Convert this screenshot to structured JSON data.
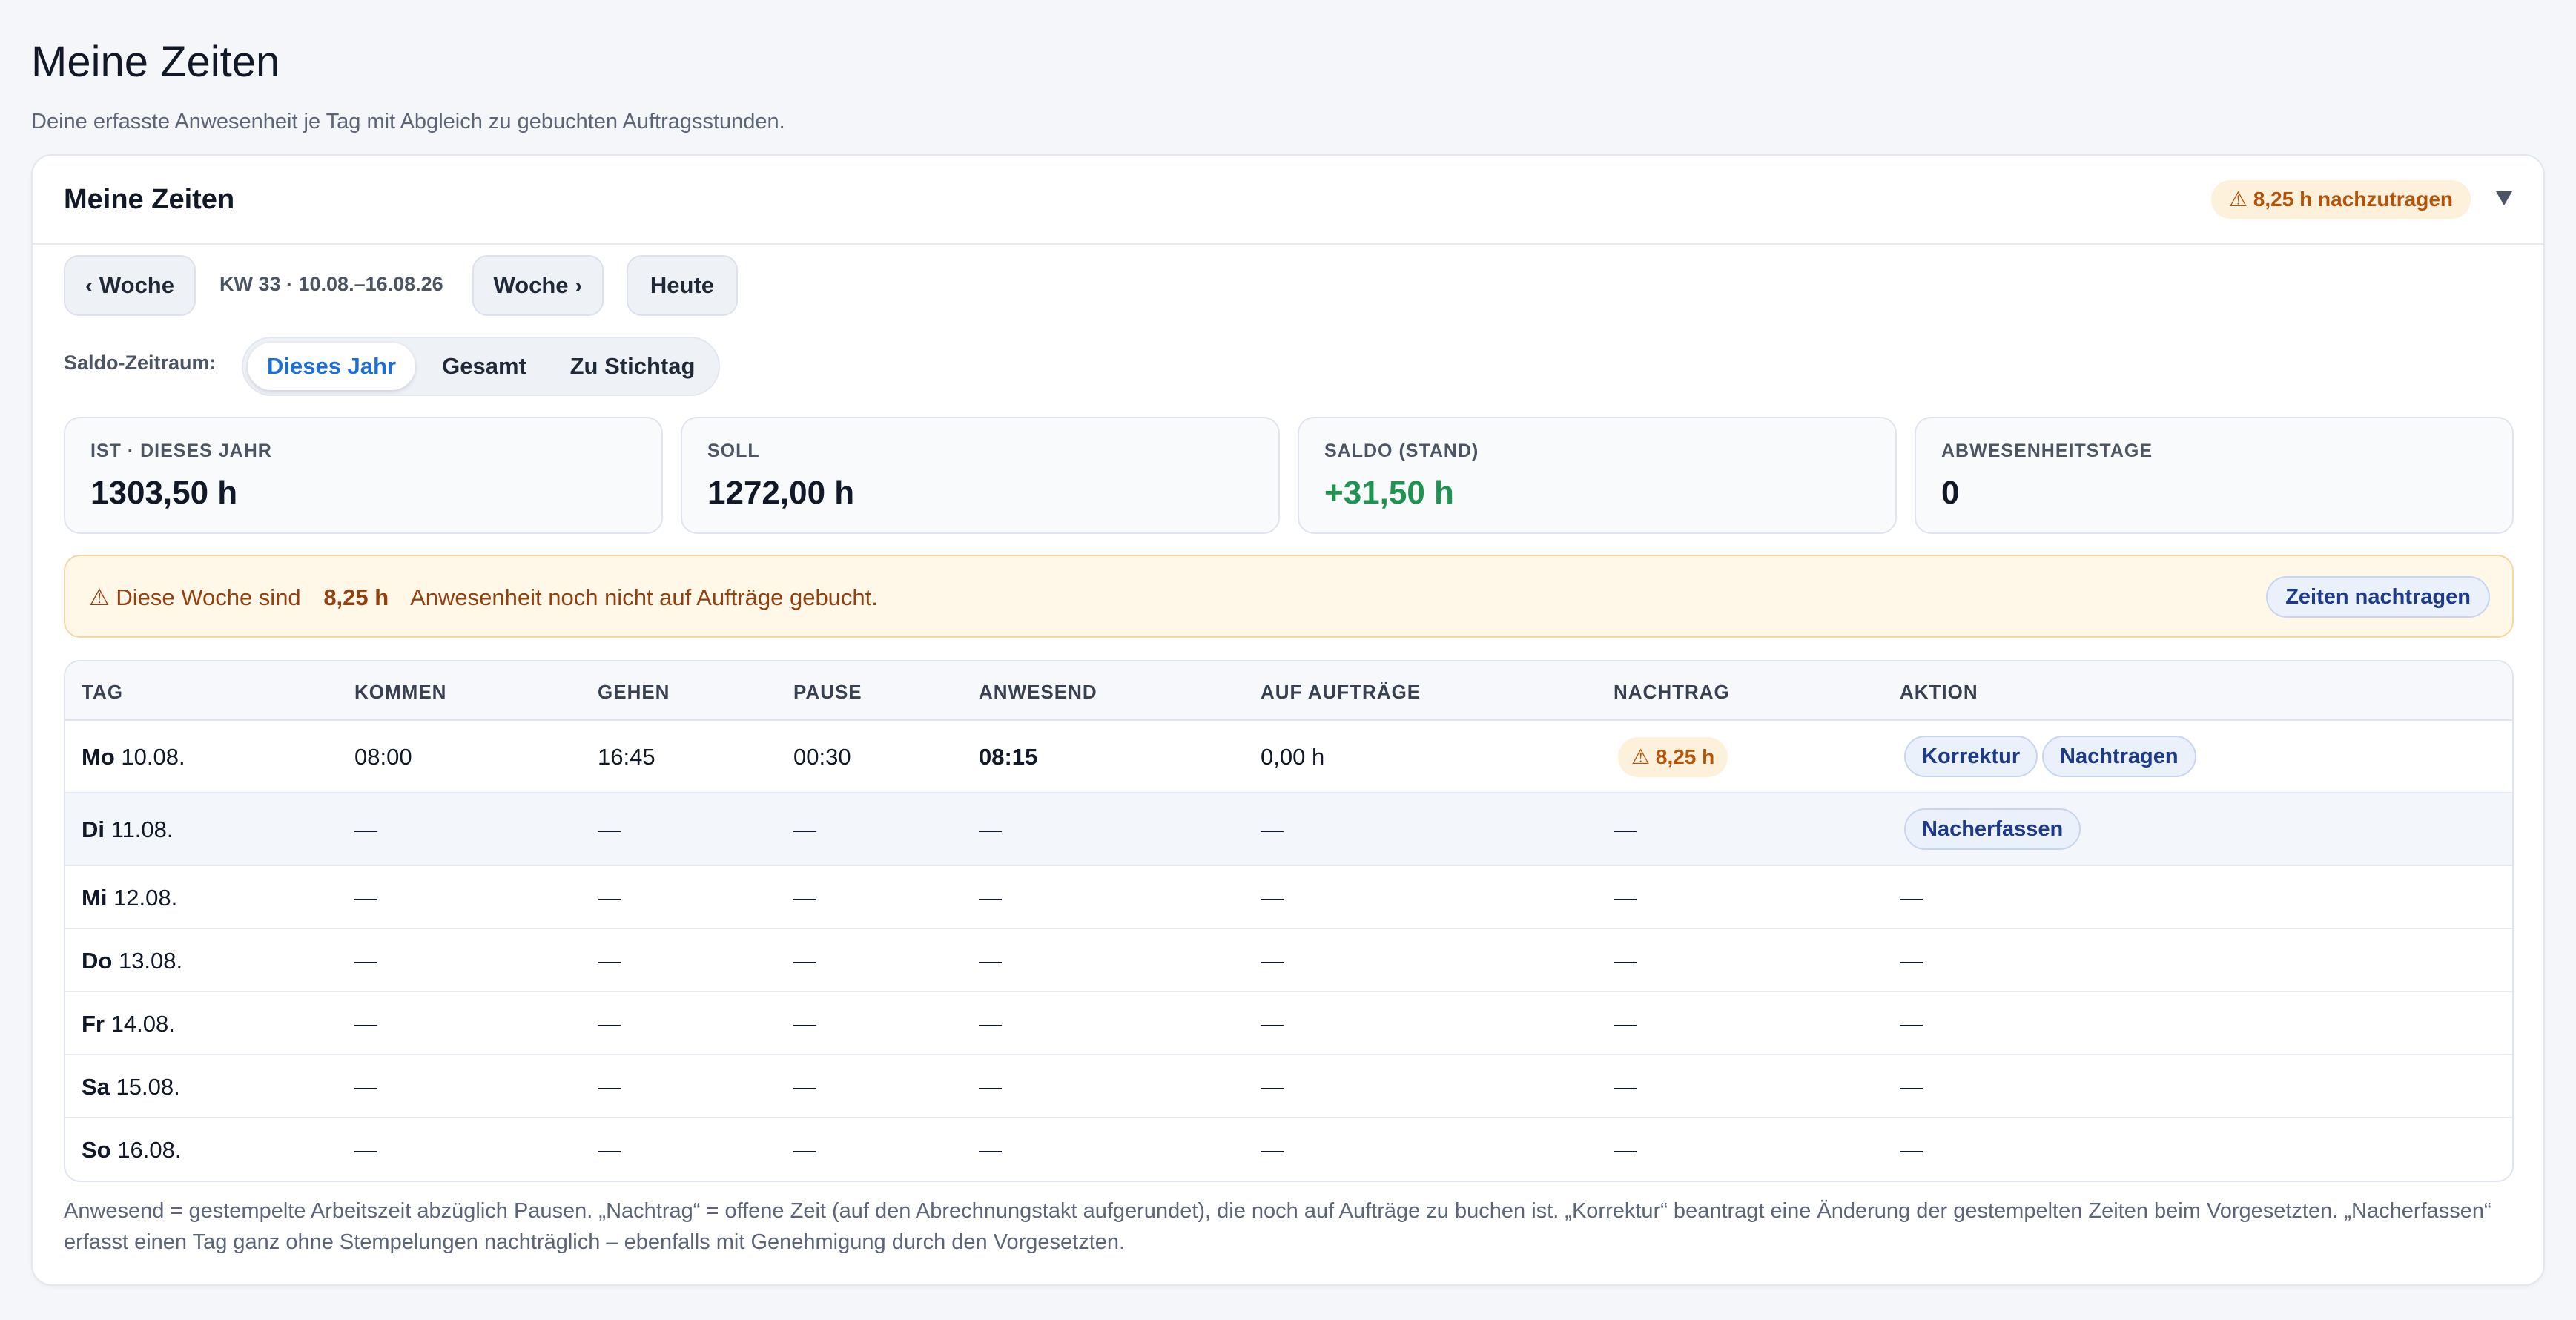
{
  "page": {
    "title": "Meine Zeiten",
    "subtitle": "Deine erfasste Anwesenheit je Tag mit Abgleich zu gebuchten Auftragsstunden."
  },
  "card": {
    "title": "Meine Zeiten",
    "badge": "⚠ 8,25 h nachzutragen",
    "collapse_icon": "triangle-down-icon"
  },
  "nav": {
    "prev_week": "‹ Woche",
    "week_label": "KW 33 · 10.08.–16.08.26",
    "next_week": "Woche ›",
    "today": "Heute"
  },
  "saldo": {
    "label": "Saldo-Zeitraum:",
    "options": [
      "Dieses Jahr",
      "Gesamt",
      "Zu Stichtag"
    ],
    "selected": "Dieses Jahr"
  },
  "stats": [
    {
      "label": "IST · DIESES JAHR",
      "value": "1303,50 h"
    },
    {
      "label": "SOLL",
      "value": "1272,00 h"
    },
    {
      "label": "SALDO (STAND)",
      "value": "+31,50 h"
    },
    {
      "label": "ABWESENHEITSTAGE",
      "value": "0"
    }
  ],
  "alert": {
    "prefix": "⚠ Diese Woche sind",
    "hours": "8,25 h",
    "suffix": "Anwesenheit noch nicht auf Aufträge gebucht.",
    "button": "Zeiten nachtragen"
  },
  "table": {
    "headers": [
      "TAG",
      "KOMMEN",
      "GEHEN",
      "PAUSE",
      "ANWESEND",
      "AUF AUFTRÄGE",
      "NACHTRAG",
      "AKTION"
    ],
    "rows": [
      {
        "day": "Mo",
        "date": "10.08.",
        "kommen": "08:00",
        "gehen": "16:45",
        "pause": "00:30",
        "anwesend": "08:15",
        "auftraege": "0,00 h",
        "nachtrag": "⚠ 8,25 h",
        "actions": [
          "Korrektur",
          "Nachtragen"
        ]
      },
      {
        "day": "Di",
        "date": "11.08.",
        "kommen": "—",
        "gehen": "—",
        "pause": "—",
        "anwesend": "—",
        "auftraege": "—",
        "nachtrag": "—",
        "actions": [
          "Nacherfassen"
        ]
      },
      {
        "day": "Mi",
        "date": "12.08.",
        "kommen": "—",
        "gehen": "—",
        "pause": "—",
        "anwesend": "—",
        "auftraege": "—",
        "nachtrag": "—",
        "action_text": "—"
      },
      {
        "day": "Do",
        "date": "13.08.",
        "kommen": "—",
        "gehen": "—",
        "pause": "—",
        "anwesend": "—",
        "auftraege": "—",
        "nachtrag": "—",
        "action_text": "—"
      },
      {
        "day": "Fr",
        "date": "14.08.",
        "kommen": "—",
        "gehen": "—",
        "pause": "—",
        "anwesend": "—",
        "auftraege": "—",
        "nachtrag": "—",
        "action_text": "—"
      },
      {
        "day": "Sa",
        "date": "15.08.",
        "kommen": "—",
        "gehen": "—",
        "pause": "—",
        "anwesend": "—",
        "auftraege": "—",
        "nachtrag": "—",
        "action_text": "—"
      },
      {
        "day": "So",
        "date": "16.08.",
        "kommen": "—",
        "gehen": "—",
        "pause": "—",
        "anwesend": "—",
        "auftraege": "—",
        "nachtrag": "—",
        "action_text": "—"
      }
    ]
  },
  "footnote": "Anwesend = gestempelte Arbeitszeit abzüglich Pausen. „Nachtrag“ = offene Zeit (auf den Abrechnungstakt aufgerundet), die noch auf Aufträge zu buchen ist. „Korrektur“ beantragt eine Änderung der gestempelten Zeiten beim Vorgesetzten. „Nacherfassen“ erfasst einen Tag ganz ohne Stempelungen nachträglich – ebenfalls mit Genehmigung durch den Vorgesetzten."
}
